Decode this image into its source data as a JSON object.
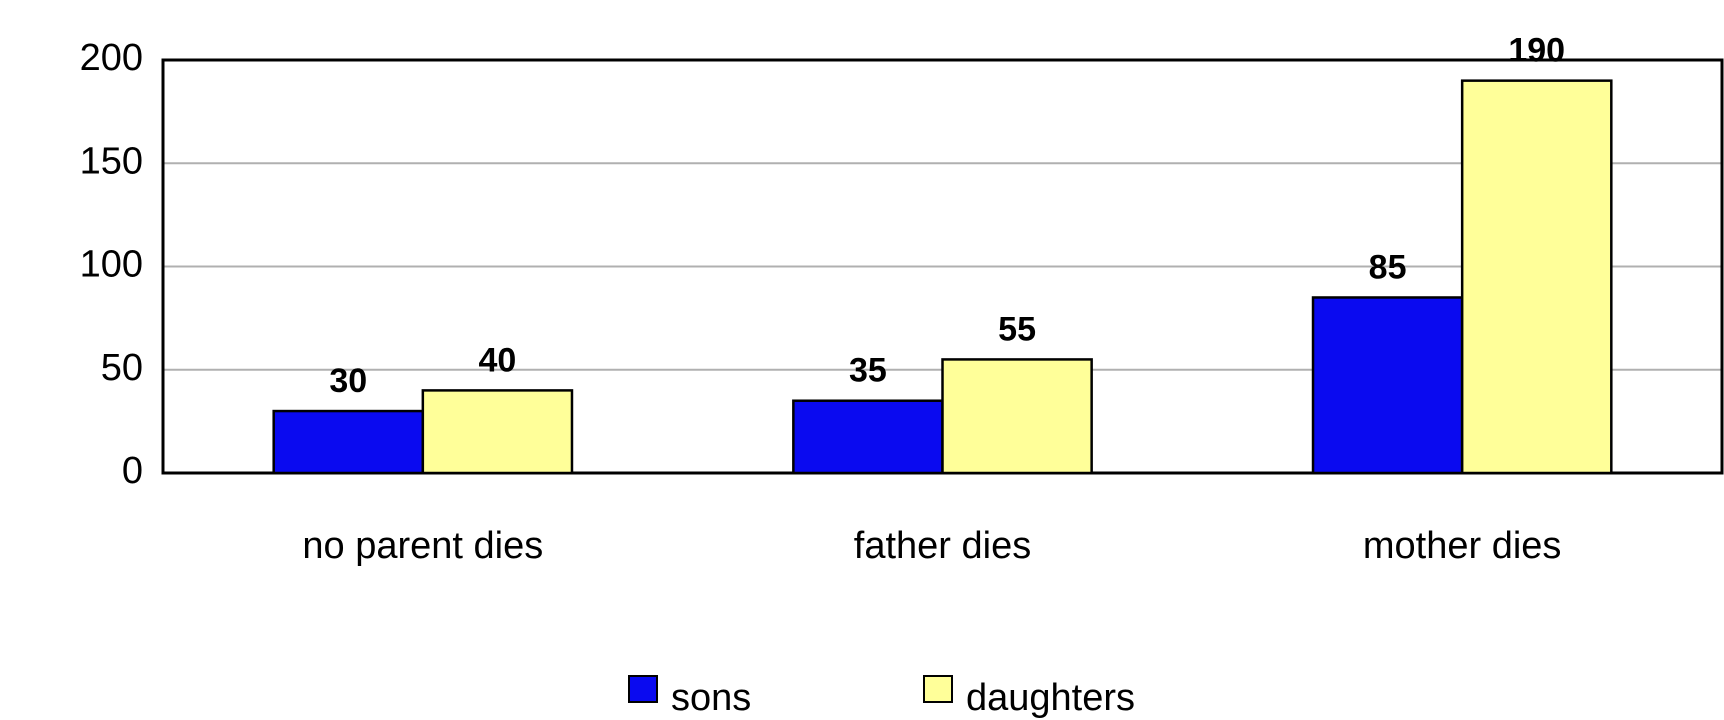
{
  "chart_data": {
    "type": "bar",
    "categories": [
      "no parent dies",
      "father dies",
      "mother dies"
    ],
    "series": [
      {
        "name": "sons",
        "color": "#0a0af0",
        "values": [
          30,
          35,
          85
        ]
      },
      {
        "name": "daughters",
        "color": "#ffff99",
        "values": [
          40,
          55,
          190
        ]
      }
    ],
    "ylim": [
      0,
      200
    ],
    "yticks": [
      0,
      50,
      100,
      150,
      200
    ],
    "grid": true,
    "legend": "bottom",
    "data_labels": true
  }
}
